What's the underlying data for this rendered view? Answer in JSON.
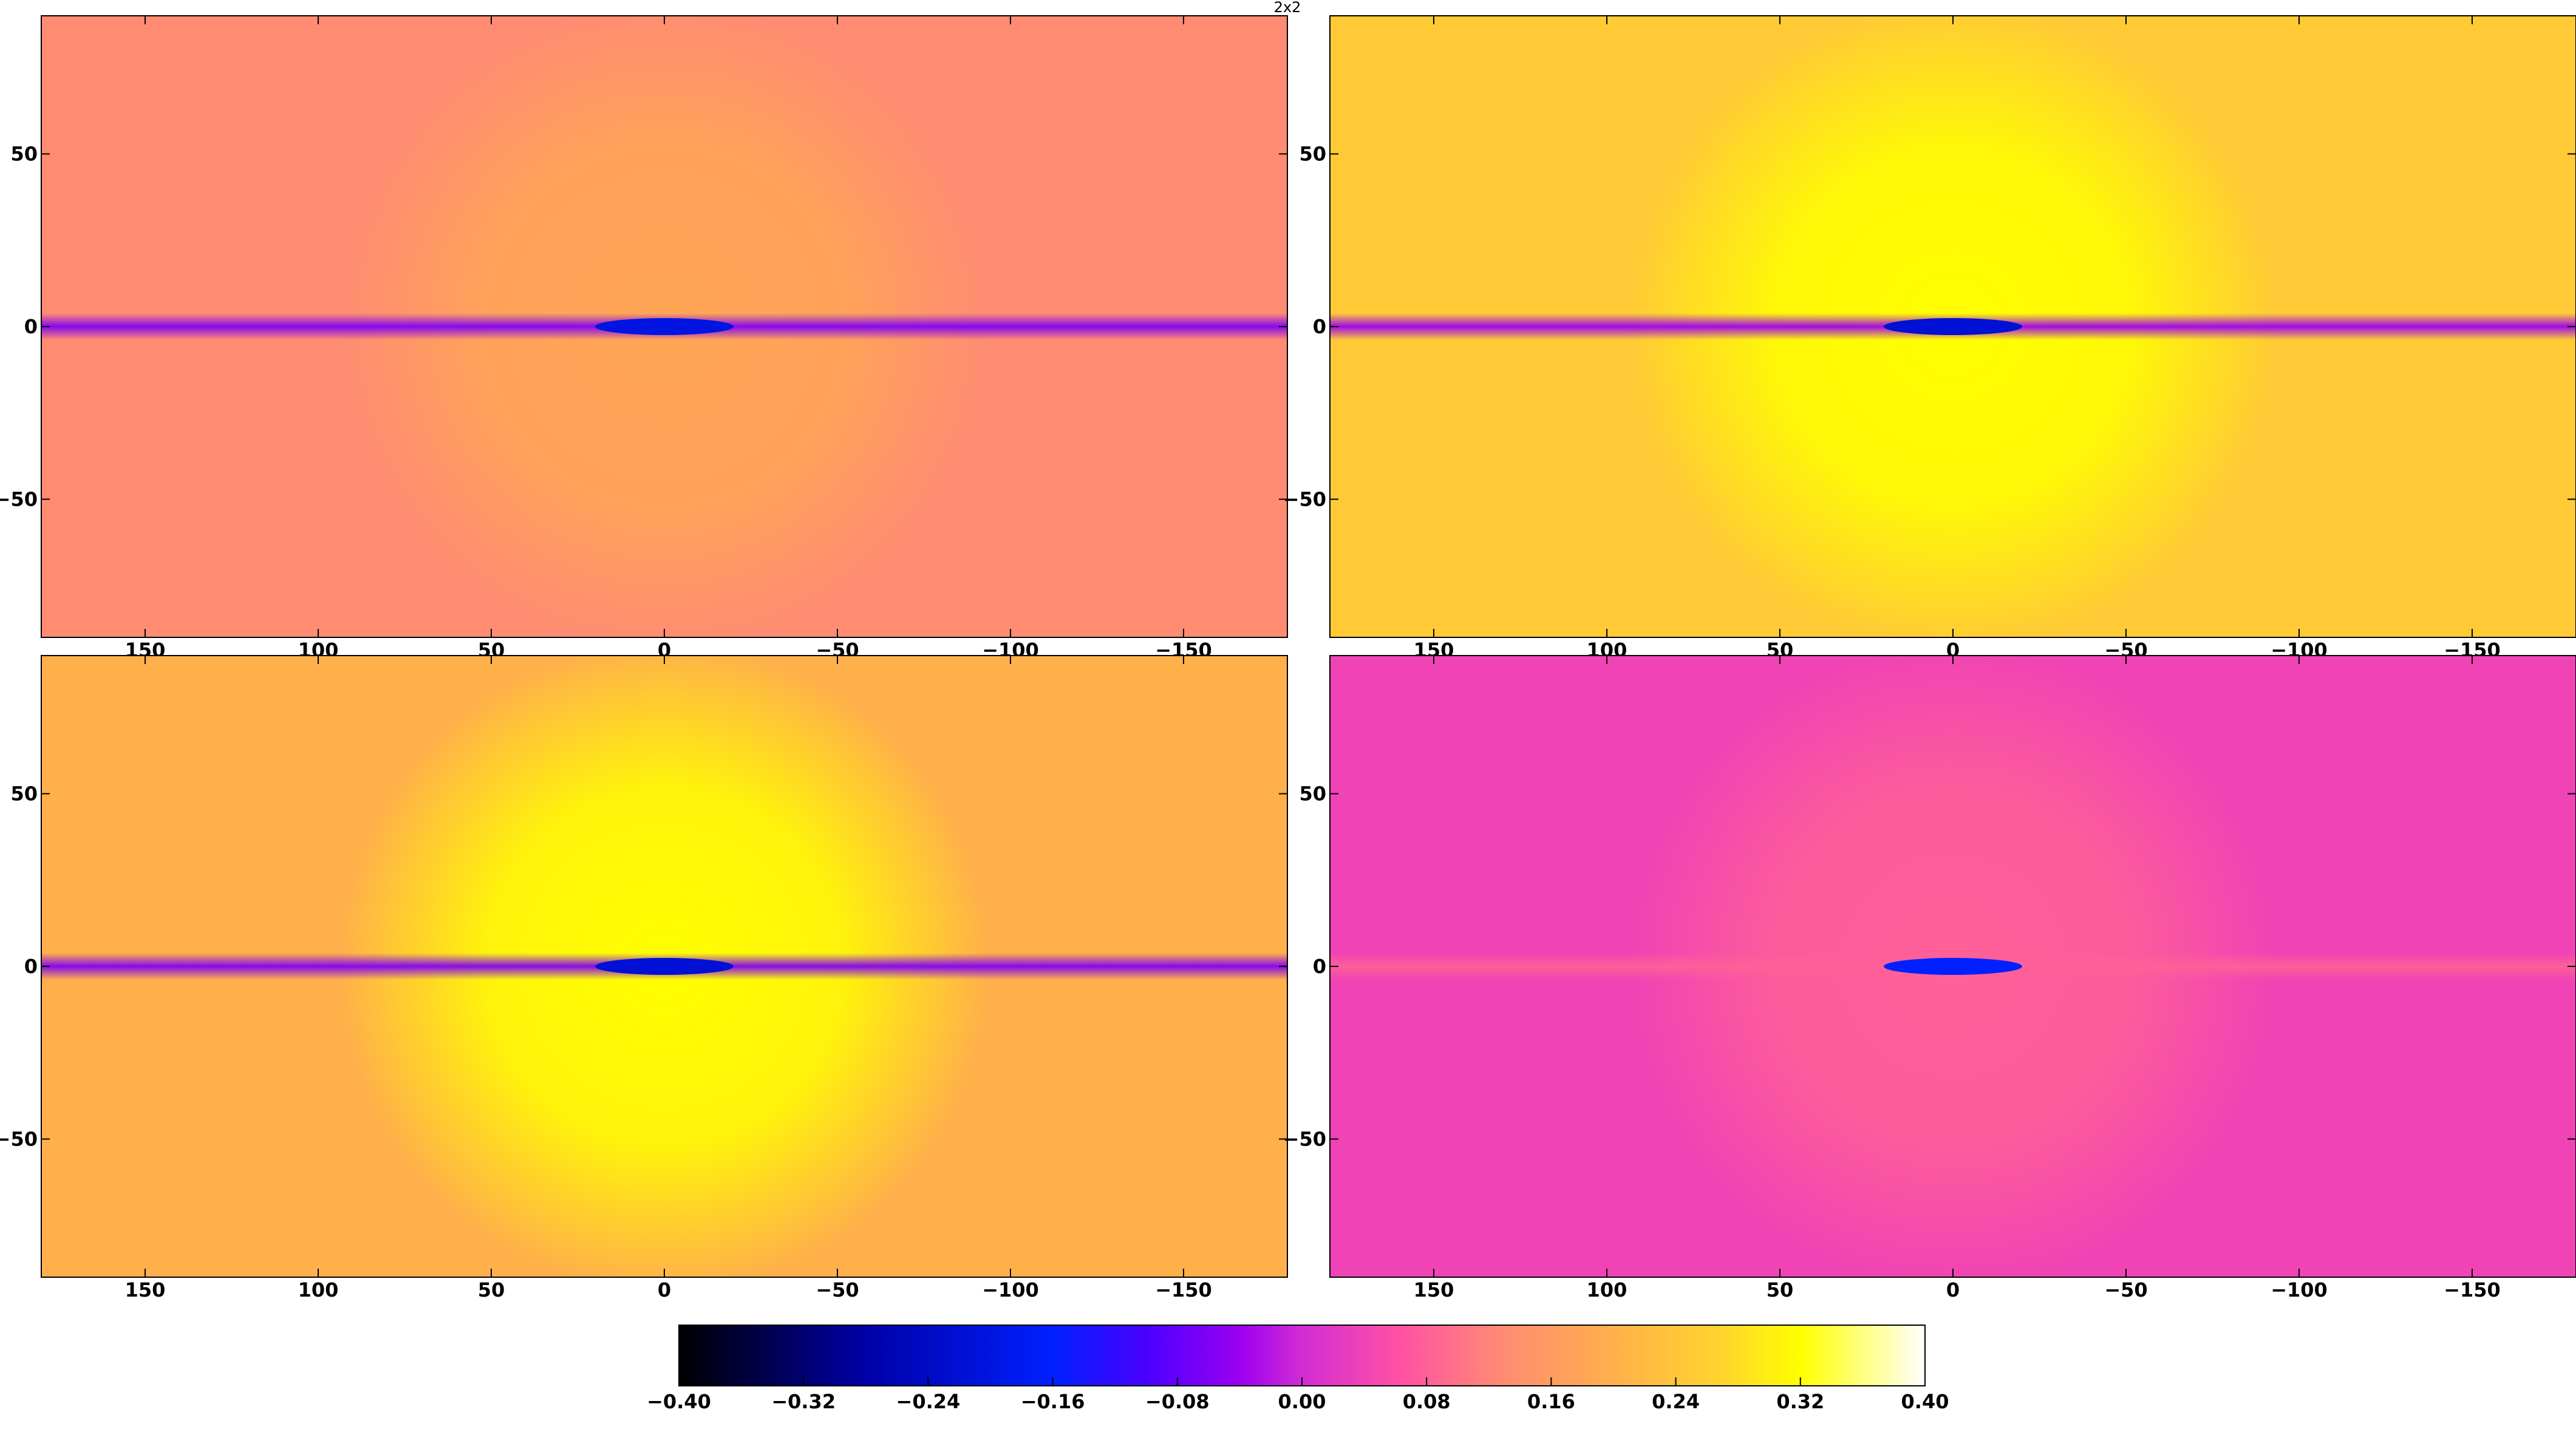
{
  "figure": {
    "corner_label": "2x2"
  },
  "chart_data": {
    "type": "heatmap",
    "panels": [
      {
        "name": "",
        "x_ticks": [
          "150",
          "100",
          "50",
          "0",
          "−50",
          "−100",
          "−150"
        ],
        "y_ticks": [
          "50",
          "0",
          "−50"
        ],
        "x_tick_values": [
          150,
          100,
          50,
          0,
          -50,
          -100,
          -150
        ],
        "y_tick_values": [
          50,
          0,
          -50
        ],
        "xlim": [
          180,
          -180
        ],
        "ylim": [
          -90,
          90
        ],
        "background_value": 0.13,
        "center_region_value": 0.18,
        "equator_band_value": -0.06,
        "center_core_value": -0.2
      },
      {
        "name": "",
        "x_ticks": [
          "150",
          "100",
          "50",
          "0",
          "−50",
          "−100",
          "−150"
        ],
        "y_ticks": [
          "50",
          "0",
          "−50"
        ],
        "x_tick_values": [
          150,
          100,
          50,
          0,
          -50,
          -100,
          -150
        ],
        "y_tick_values": [
          50,
          0,
          -50
        ],
        "xlim": [
          180,
          -180
        ],
        "ylim": [
          -90,
          90
        ],
        "background_value": 0.25,
        "center_region_value": 0.32,
        "equator_band_value": -0.04,
        "center_core_value": -0.22
      },
      {
        "name": "",
        "x_ticks": [
          "150",
          "100",
          "50",
          "0",
          "−50",
          "−100",
          "−150"
        ],
        "y_ticks": [
          "50",
          "0",
          "−50"
        ],
        "x_tick_values": [
          150,
          100,
          50,
          0,
          -50,
          -100,
          -150
        ],
        "y_tick_values": [
          50,
          0,
          -50
        ],
        "xlim": [
          180,
          -180
        ],
        "ylim": [
          -90,
          90
        ],
        "background_value": 0.2,
        "center_region_value": 0.32,
        "equator_band_value": -0.06,
        "center_core_value": -0.22
      },
      {
        "name": "",
        "x_ticks": [
          "150",
          "100",
          "50",
          "0",
          "−50",
          "−100",
          "−150"
        ],
        "y_ticks": [
          "50",
          "0",
          "−50"
        ],
        "x_tick_values": [
          150,
          100,
          50,
          0,
          -50,
          -100,
          -150
        ],
        "y_tick_values": [
          50,
          0,
          -50
        ],
        "xlim": [
          180,
          -180
        ],
        "ylim": [
          -90,
          90
        ],
        "background_value": 0.04,
        "center_region_value": 0.08,
        "equator_band_value": 0.08,
        "center_core_value": -0.16
      }
    ],
    "colorbar": {
      "orientation": "horizontal",
      "range": [
        -0.4,
        0.4
      ],
      "tick_values": [
        -0.4,
        -0.32,
        -0.24,
        -0.16,
        -0.08,
        0.0,
        0.08,
        0.16,
        0.24,
        0.32,
        0.4
      ],
      "tick_labels": [
        "−0.40",
        "−0.32",
        "−0.24",
        "−0.16",
        "−0.08",
        "0.00",
        "0.08",
        "0.16",
        "0.24",
        "0.32",
        "0.40"
      ],
      "stops": [
        {
          "value": -0.4,
          "color": "#000000"
        },
        {
          "value": -0.28,
          "color": "#0000a8"
        },
        {
          "value": -0.16,
          "color": "#0020ff"
        },
        {
          "value": -0.1,
          "color": "#4a00ff"
        },
        {
          "value": -0.04,
          "color": "#9b00f0"
        },
        {
          "value": 0.0,
          "color": "#d22cd4"
        },
        {
          "value": 0.06,
          "color": "#ff4fa6"
        },
        {
          "value": 0.13,
          "color": "#ff8c72"
        },
        {
          "value": 0.2,
          "color": "#ffb04a"
        },
        {
          "value": 0.27,
          "color": "#ffd52e"
        },
        {
          "value": 0.32,
          "color": "#ffff00"
        },
        {
          "value": 0.4,
          "color": "#ffffff"
        }
      ]
    }
  }
}
